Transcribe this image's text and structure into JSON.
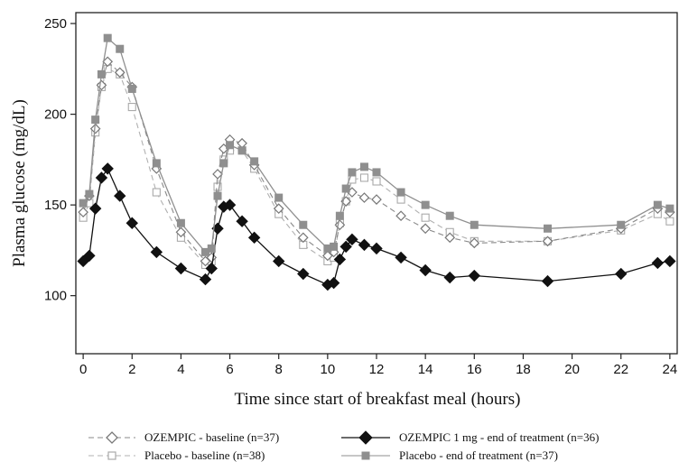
{
  "chart_data": {
    "type": "line",
    "xlabel": "Time since start of breakfast meal (hours)",
    "ylabel": "Plasma glucose (mg/dL)",
    "xlim": [
      -0.3,
      24.3
    ],
    "ylim": [
      68,
      256
    ],
    "xticks": [
      0,
      2,
      4,
      6,
      8,
      10,
      12,
      14,
      16,
      18,
      20,
      22,
      24
    ],
    "yticks": [
      100,
      150,
      200,
      250
    ],
    "grid": false,
    "legend_position": "bottom",
    "series": [
      {
        "name": "Placebo - baseline (n=38)",
        "color": "#b0b0b0",
        "dash": "dashed",
        "marker": "open-square",
        "x": [
          0,
          0.25,
          0.5,
          0.75,
          1,
          1.5,
          2,
          3,
          4,
          5,
          5.25,
          5.5,
          5.75,
          6,
          6.5,
          7,
          8,
          9,
          10,
          10.25,
          10.5,
          10.75,
          11,
          11.5,
          12,
          13,
          14,
          15,
          16,
          19,
          22,
          23.5,
          24
        ],
        "y": [
          143,
          151,
          190,
          215,
          225,
          222,
          204,
          157,
          132,
          117,
          119,
          160,
          175,
          180,
          180,
          170,
          145,
          128,
          119,
          121,
          140,
          152,
          164,
          165,
          163,
          153,
          143,
          135,
          130,
          130,
          136,
          145,
          141
        ]
      },
      {
        "name": "OZEMPIC - baseline (n=37)",
        "color": "#888888",
        "dash": "dashed",
        "marker": "open-diamond",
        "x": [
          0,
          0.25,
          0.5,
          0.75,
          1,
          1.5,
          2,
          3,
          4,
          5,
          5.25,
          5.5,
          5.75,
          6,
          6.5,
          7,
          8,
          9,
          10,
          10.25,
          10.5,
          10.75,
          11,
          11.5,
          12,
          13,
          14,
          15,
          16,
          19,
          22,
          23.5,
          24
        ],
        "y": [
          146,
          155,
          192,
          216,
          229,
          223,
          215,
          170,
          135,
          119,
          121,
          167,
          181,
          186,
          184,
          172,
          148,
          132,
          122,
          124,
          139,
          152,
          157,
          154,
          153,
          144,
          137,
          132,
          129,
          130,
          137,
          148,
          146
        ]
      },
      {
        "name": "OZEMPIC 1 mg - end of treatment (n=36)",
        "color": "#111111",
        "dash": "solid",
        "marker": "filled-diamond",
        "x": [
          0,
          0.25,
          0.5,
          0.75,
          1,
          1.5,
          2,
          3,
          4,
          5,
          5.25,
          5.5,
          5.75,
          6,
          6.5,
          7,
          8,
          9,
          10,
          10.25,
          10.5,
          10.75,
          11,
          11.5,
          12,
          13,
          14,
          15,
          16,
          19,
          22,
          23.5,
          24
        ],
        "y": [
          119,
          122,
          148,
          165,
          170,
          155,
          140,
          124,
          115,
          109,
          115,
          137,
          149,
          150,
          141,
          132,
          119,
          112,
          106,
          107,
          120,
          127,
          131,
          128,
          126,
          121,
          114,
          110,
          111,
          108,
          112,
          118,
          119
        ]
      },
      {
        "name": "Placebo - end of treatment (n=37)",
        "color": "#8f8f8f",
        "dash": "solid",
        "marker": "filled-square",
        "x": [
          0,
          0.25,
          0.5,
          0.75,
          1,
          1.5,
          2,
          3,
          4,
          5,
          5.25,
          5.5,
          5.75,
          6,
          6.5,
          7,
          8,
          9,
          10,
          10.25,
          10.5,
          10.75,
          11,
          11.5,
          12,
          13,
          14,
          15,
          16,
          19,
          22,
          23.5,
          24
        ],
        "y": [
          151,
          156,
          197,
          222,
          242,
          236,
          214,
          173,
          140,
          124,
          126,
          155,
          173,
          183,
          180,
          174,
          154,
          139,
          126,
          127,
          144,
          159,
          168,
          171,
          168,
          157,
          150,
          144,
          139,
          137,
          139,
          150,
          148
        ]
      }
    ]
  }
}
